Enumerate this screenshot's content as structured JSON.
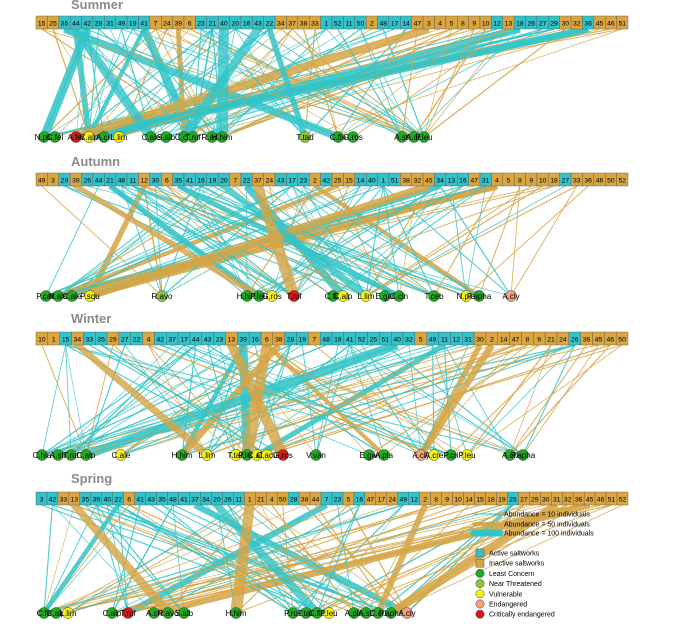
{
  "colors": {
    "active": "#33c2c9",
    "inactive": "#d9a641",
    "least_concern": "#1faa22",
    "near_threatened": "#8cc63e",
    "vulnerable": "#f5f20d",
    "endangered": "#f4a07a",
    "critically_endangered": "#d11a1a",
    "line_active": "#33c4c8",
    "line_inactive": "#d6a445"
  },
  "seasons": [
    {
      "title": "Summer",
      "saltworks": [
        {
          "id": "15",
          "s": "i"
        },
        {
          "id": "25",
          "s": "i"
        },
        {
          "id": "35",
          "s": "a"
        },
        {
          "id": "44",
          "s": "a"
        },
        {
          "id": "42",
          "s": "a"
        },
        {
          "id": "28",
          "s": "a"
        },
        {
          "id": "31",
          "s": "a"
        },
        {
          "id": "49",
          "s": "a"
        },
        {
          "id": "19",
          "s": "a"
        },
        {
          "id": "41",
          "s": "a"
        },
        {
          "id": "7",
          "s": "i"
        },
        {
          "id": "24",
          "s": "i"
        },
        {
          "id": "39",
          "s": "i"
        },
        {
          "id": "6",
          "s": "i"
        },
        {
          "id": "23",
          "s": "a"
        },
        {
          "id": "21",
          "s": "a"
        },
        {
          "id": "40",
          "s": "a"
        },
        {
          "id": "20",
          "s": "a"
        },
        {
          "id": "16",
          "s": "a"
        },
        {
          "id": "43",
          "s": "a"
        },
        {
          "id": "22",
          "s": "a"
        },
        {
          "id": "34",
          "s": "i"
        },
        {
          "id": "37",
          "s": "i"
        },
        {
          "id": "38",
          "s": "i"
        },
        {
          "id": "33",
          "s": "i"
        },
        {
          "id": "1",
          "s": "a"
        },
        {
          "id": "52",
          "s": "a"
        },
        {
          "id": "11",
          "s": "a"
        },
        {
          "id": "50",
          "s": "a"
        },
        {
          "id": "2",
          "s": "i"
        },
        {
          "id": "48",
          "s": "a"
        },
        {
          "id": "17",
          "s": "a"
        },
        {
          "id": "14",
          "s": "a"
        },
        {
          "id": "47",
          "s": "i"
        },
        {
          "id": "3",
          "s": "i"
        },
        {
          "id": "4",
          "s": "i"
        },
        {
          "id": "5",
          "s": "i"
        },
        {
          "id": "8",
          "s": "i"
        },
        {
          "id": "9",
          "s": "i"
        },
        {
          "id": "10",
          "s": "i"
        },
        {
          "id": "12",
          "s": "a"
        },
        {
          "id": "13",
          "s": "i"
        },
        {
          "id": "18",
          "s": "a"
        },
        {
          "id": "26",
          "s": "a"
        },
        {
          "id": "27",
          "s": "a"
        },
        {
          "id": "29",
          "s": "a"
        },
        {
          "id": "30",
          "s": "i"
        },
        {
          "id": "32",
          "s": "i"
        },
        {
          "id": "36",
          "s": "a"
        },
        {
          "id": "45",
          "s": "i"
        },
        {
          "id": "46",
          "s": "i"
        },
        {
          "id": "51",
          "s": "i"
        }
      ],
      "species": [
        {
          "label": "N.pla",
          "st": "LC"
        },
        {
          "label": "C.fel",
          "st": "LC"
        },
        {
          "label": "A.fer",
          "st": "CR"
        },
        {
          "label": "C.alp",
          "st": "VU"
        },
        {
          "label": "A.cri",
          "st": "LC"
        },
        {
          "label": "L.lim",
          "st": "VU"
        },
        {
          "label": "C.ale",
          "st": "LC"
        },
        {
          "label": "S.alb",
          "st": "LC"
        },
        {
          "label": "C.chl",
          "st": "LC"
        },
        {
          "label": "T.ruf",
          "st": "LC"
        },
        {
          "label": "R.avo",
          "st": "LC"
        },
        {
          "label": "H.him",
          "st": "LC"
        },
        {
          "label": "T.tad",
          "st": "NT"
        },
        {
          "label": "C.fla",
          "st": "LC"
        },
        {
          "label": "G.ros",
          "st": "LC"
        },
        {
          "label": "A.sti",
          "st": "LC"
        },
        {
          "label": "A.cri",
          "st": "LC"
        },
        {
          "label": "P.leu",
          "st": "LC"
        }
      ]
    },
    {
      "title": "Autumn",
      "saltworks": [
        {
          "id": "49",
          "s": "i"
        },
        {
          "id": "3",
          "s": "i"
        },
        {
          "id": "29",
          "s": "a"
        },
        {
          "id": "39",
          "s": "i"
        },
        {
          "id": "26",
          "s": "a"
        },
        {
          "id": "44",
          "s": "a"
        },
        {
          "id": "21",
          "s": "a"
        },
        {
          "id": "48",
          "s": "a"
        },
        {
          "id": "11",
          "s": "a"
        },
        {
          "id": "12",
          "s": "i"
        },
        {
          "id": "30",
          "s": "a"
        },
        {
          "id": "6",
          "s": "i"
        },
        {
          "id": "35",
          "s": "a"
        },
        {
          "id": "41",
          "s": "a"
        },
        {
          "id": "16",
          "s": "a"
        },
        {
          "id": "19",
          "s": "a"
        },
        {
          "id": "20",
          "s": "a"
        },
        {
          "id": "7",
          "s": "i"
        },
        {
          "id": "22",
          "s": "a"
        },
        {
          "id": "37",
          "s": "i"
        },
        {
          "id": "24",
          "s": "i"
        },
        {
          "id": "43",
          "s": "a"
        },
        {
          "id": "17",
          "s": "a"
        },
        {
          "id": "23",
          "s": "a"
        },
        {
          "id": "2",
          "s": "i"
        },
        {
          "id": "42",
          "s": "a"
        },
        {
          "id": "25",
          "s": "i"
        },
        {
          "id": "15",
          "s": "i"
        },
        {
          "id": "14",
          "s": "a"
        },
        {
          "id": "40",
          "s": "a"
        },
        {
          "id": "1",
          "s": "a"
        },
        {
          "id": "51",
          "s": "a"
        },
        {
          "id": "38",
          "s": "i"
        },
        {
          "id": "32",
          "s": "i"
        },
        {
          "id": "45",
          "s": "i"
        },
        {
          "id": "34",
          "s": "a"
        },
        {
          "id": "13",
          "s": "a"
        },
        {
          "id": "16",
          "s": "a"
        },
        {
          "id": "47",
          "s": "i"
        },
        {
          "id": "31",
          "s": "a"
        },
        {
          "id": "4",
          "s": "i"
        },
        {
          "id": "5",
          "s": "i"
        },
        {
          "id": "8",
          "s": "i"
        },
        {
          "id": "9",
          "s": "i"
        },
        {
          "id": "10",
          "s": "i"
        },
        {
          "id": "18",
          "s": "i"
        },
        {
          "id": "27",
          "s": "a"
        },
        {
          "id": "33",
          "s": "i"
        },
        {
          "id": "36",
          "s": "i"
        },
        {
          "id": "46",
          "s": "i"
        },
        {
          "id": "50",
          "s": "i"
        },
        {
          "id": "52",
          "s": "i"
        }
      ],
      "species": [
        {
          "label": "P.cab",
          "st": "LC"
        },
        {
          "label": "N.ale",
          "st": "LC"
        },
        {
          "label": "C.ale",
          "st": "LC"
        },
        {
          "label": "P.squ",
          "st": "VU"
        },
        {
          "label": "R.avo",
          "st": "NT"
        },
        {
          "label": "H.him",
          "st": "LC"
        },
        {
          "label": "P.leu",
          "st": "LC"
        },
        {
          "label": "G.ros",
          "st": "VU"
        },
        {
          "label": "T.ruf",
          "st": "CR"
        },
        {
          "label": "C.fla",
          "st": "LC"
        },
        {
          "label": "C.alp",
          "st": "VU"
        },
        {
          "label": "L.lim",
          "st": "VU"
        },
        {
          "label": "E.gar",
          "st": "LC"
        },
        {
          "label": "C.cin",
          "st": "LC"
        },
        {
          "label": "T.ceb",
          "st": "LC"
        },
        {
          "label": "N.pla",
          "st": "VU"
        },
        {
          "label": "P.apha",
          "st": "LC"
        },
        {
          "label": "A.cly",
          "st": "EN"
        }
      ]
    },
    {
      "title": "Winter",
      "saltworks": [
        {
          "id": "10",
          "s": "i"
        },
        {
          "id": "1",
          "s": "i"
        },
        {
          "id": "15",
          "s": "a"
        },
        {
          "id": "34",
          "s": "i"
        },
        {
          "id": "33",
          "s": "a"
        },
        {
          "id": "35",
          "s": "a"
        },
        {
          "id": "29",
          "s": "i"
        },
        {
          "id": "27",
          "s": "a"
        },
        {
          "id": "22",
          "s": "a"
        },
        {
          "id": "4",
          "s": "i"
        },
        {
          "id": "42",
          "s": "a"
        },
        {
          "id": "37",
          "s": "a"
        },
        {
          "id": "17",
          "s": "a"
        },
        {
          "id": "44",
          "s": "a"
        },
        {
          "id": "43",
          "s": "a"
        },
        {
          "id": "23",
          "s": "a"
        },
        {
          "id": "13",
          "s": "i"
        },
        {
          "id": "39",
          "s": "a"
        },
        {
          "id": "16",
          "s": "a"
        },
        {
          "id": "6",
          "s": "i"
        },
        {
          "id": "38",
          "s": "i"
        },
        {
          "id": "28",
          "s": "a"
        },
        {
          "id": "19",
          "s": "a"
        },
        {
          "id": "7",
          "s": "i"
        },
        {
          "id": "48",
          "s": "a"
        },
        {
          "id": "18",
          "s": "a"
        },
        {
          "id": "41",
          "s": "a"
        },
        {
          "id": "52",
          "s": "a"
        },
        {
          "id": "25",
          "s": "a"
        },
        {
          "id": "51",
          "s": "a"
        },
        {
          "id": "40",
          "s": "a"
        },
        {
          "id": "32",
          "s": "a"
        },
        {
          "id": "5",
          "s": "i"
        },
        {
          "id": "49",
          "s": "a"
        },
        {
          "id": "11",
          "s": "a"
        },
        {
          "id": "12",
          "s": "a"
        },
        {
          "id": "31",
          "s": "a"
        },
        {
          "id": "30",
          "s": "i"
        },
        {
          "id": "2",
          "s": "i"
        },
        {
          "id": "14",
          "s": "i"
        },
        {
          "id": "47",
          "s": "i"
        },
        {
          "id": "8",
          "s": "i"
        },
        {
          "id": "9",
          "s": "i"
        },
        {
          "id": "21",
          "s": "i"
        },
        {
          "id": "24",
          "s": "i"
        },
        {
          "id": "26",
          "s": "a"
        },
        {
          "id": "36",
          "s": "i"
        },
        {
          "id": "45",
          "s": "i"
        },
        {
          "id": "46",
          "s": "i"
        },
        {
          "id": "50",
          "s": "i"
        }
      ],
      "species": [
        {
          "label": "C.hia",
          "st": "LC"
        },
        {
          "label": "A.str",
          "st": "LC"
        },
        {
          "label": "T.ruf",
          "st": "LC"
        },
        {
          "label": "C.alp",
          "st": "LC"
        },
        {
          "label": "C.ale",
          "st": "VU"
        },
        {
          "label": "H.him",
          "st": "LC"
        },
        {
          "label": "L.lim",
          "st": "VU"
        },
        {
          "label": "T.tad",
          "st": "VU"
        },
        {
          "label": "P.leu",
          "st": "LC"
        },
        {
          "label": "C.alb",
          "st": "VU"
        },
        {
          "label": "C.acu",
          "st": "VU"
        },
        {
          "label": "G.ros",
          "st": "CR"
        },
        {
          "label": "V.van",
          "st": "LC"
        },
        {
          "label": "E.gar",
          "st": "LC"
        },
        {
          "label": "A.pla",
          "st": "LC"
        },
        {
          "label": "A.cly",
          "st": "EN"
        },
        {
          "label": "A.cre",
          "st": "VU"
        },
        {
          "label": "P.cri",
          "st": "LC"
        },
        {
          "label": "P.leu",
          "st": "VU"
        },
        {
          "label": "A.cri",
          "st": "LC"
        },
        {
          "label": "P.apha",
          "st": "LC"
        }
      ]
    },
    {
      "title": "Spring",
      "saltworks": [
        {
          "id": "3",
          "s": "a"
        },
        {
          "id": "42",
          "s": "a"
        },
        {
          "id": "33",
          "s": "i"
        },
        {
          "id": "13",
          "s": "i"
        },
        {
          "id": "35",
          "s": "a"
        },
        {
          "id": "39",
          "s": "a"
        },
        {
          "id": "40",
          "s": "a"
        },
        {
          "id": "22",
          "s": "a"
        },
        {
          "id": "6",
          "s": "i"
        },
        {
          "id": "41",
          "s": "a"
        },
        {
          "id": "43",
          "s": "a"
        },
        {
          "id": "35",
          "s": "a"
        },
        {
          "id": "48",
          "s": "a"
        },
        {
          "id": "41",
          "s": "a"
        },
        {
          "id": "37",
          "s": "a"
        },
        {
          "id": "34",
          "s": "a"
        },
        {
          "id": "20",
          "s": "a"
        },
        {
          "id": "26",
          "s": "a"
        },
        {
          "id": "11",
          "s": "a"
        },
        {
          "id": "1",
          "s": "i"
        },
        {
          "id": "21",
          "s": "i"
        },
        {
          "id": "4",
          "s": "i"
        },
        {
          "id": "50",
          "s": "i"
        },
        {
          "id": "28",
          "s": "a"
        },
        {
          "id": "38",
          "s": "i"
        },
        {
          "id": "44",
          "s": "i"
        },
        {
          "id": "7",
          "s": "a"
        },
        {
          "id": "23",
          "s": "a"
        },
        {
          "id": "5",
          "s": "i"
        },
        {
          "id": "16",
          "s": "a"
        },
        {
          "id": "47",
          "s": "i"
        },
        {
          "id": "17",
          "s": "i"
        },
        {
          "id": "24",
          "s": "i"
        },
        {
          "id": "49",
          "s": "a"
        },
        {
          "id": "12",
          "s": "a"
        },
        {
          "id": "2",
          "s": "i"
        },
        {
          "id": "8",
          "s": "i"
        },
        {
          "id": "9",
          "s": "i"
        },
        {
          "id": "10",
          "s": "i"
        },
        {
          "id": "14",
          "s": "i"
        },
        {
          "id": "15",
          "s": "i"
        },
        {
          "id": "18",
          "s": "i"
        },
        {
          "id": "19",
          "s": "i"
        },
        {
          "id": "25",
          "s": "a"
        },
        {
          "id": "27",
          "s": "i"
        },
        {
          "id": "29",
          "s": "i"
        },
        {
          "id": "30",
          "s": "i"
        },
        {
          "id": "31",
          "s": "i"
        },
        {
          "id": "32",
          "s": "i"
        },
        {
          "id": "36",
          "s": "i"
        },
        {
          "id": "45",
          "s": "i"
        },
        {
          "id": "46",
          "s": "i"
        },
        {
          "id": "51",
          "s": "i"
        },
        {
          "id": "52",
          "s": "i"
        }
      ],
      "species": [
        {
          "label": "C.fe",
          "st": "LC"
        },
        {
          "label": "C.alp",
          "st": "LC"
        },
        {
          "label": "L.lim",
          "st": "VU"
        },
        {
          "label": "C.alp",
          "st": "LC"
        },
        {
          "label": "T.ruf",
          "st": "CR"
        },
        {
          "label": "A.cri",
          "st": "LC"
        },
        {
          "label": "R.avo",
          "st": "LC"
        },
        {
          "label": "S.alb",
          "st": "LC"
        },
        {
          "label": "H.him",
          "st": "LC"
        },
        {
          "label": "P.ros",
          "st": "LC"
        },
        {
          "label": "T.tad",
          "st": "LC"
        },
        {
          "label": "C.fla",
          "st": "LC"
        },
        {
          "label": "P.leu",
          "st": "VU"
        },
        {
          "label": "A.pla",
          "st": "LC"
        },
        {
          "label": "A.sti",
          "st": "LC"
        },
        {
          "label": "C.cri",
          "st": "LC"
        },
        {
          "label": "P.apha",
          "st": "LC"
        },
        {
          "label": "A.cly",
          "st": "EN"
        }
      ]
    }
  ],
  "legend": {
    "abundance": [
      {
        "label": "Abundance = 10 individuals"
      },
      {
        "label": "Abundance = 50 individuals"
      },
      {
        "label": "Abundance = 100 individuals"
      }
    ],
    "categories": [
      {
        "label": "Active saltworks",
        "key": "active",
        "shape": "square"
      },
      {
        "label": "Inactive saltworks",
        "key": "inactive",
        "shape": "square"
      },
      {
        "label": "Least Concern",
        "key": "least_concern",
        "shape": "circle"
      },
      {
        "label": "Near Threatened",
        "key": "near_threatened",
        "shape": "circle"
      },
      {
        "label": "Vulnerable",
        "key": "vulnerable",
        "shape": "circle"
      },
      {
        "label": "Endangered",
        "key": "endangered",
        "shape": "circle"
      },
      {
        "label": "Critically endangered",
        "key": "critically_endangered",
        "shape": "circle"
      }
    ]
  }
}
